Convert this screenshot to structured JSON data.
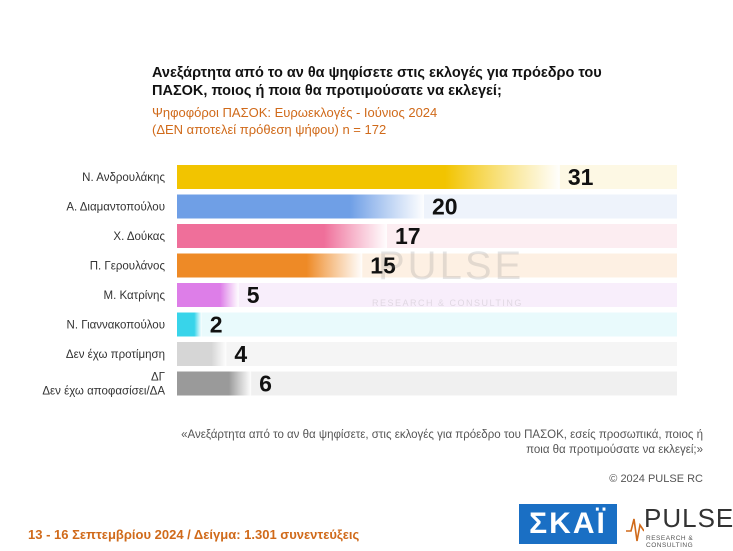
{
  "header": {
    "title": "Ανεξάρτητα από το αν θα ψηφίσετε στις εκλογές για πρόεδρο του ΠΑΣΟΚ, ποιος ή ποια θα προτιμούσατε να εκλεγεί;",
    "subtitle_line1": "Ψηφοφόροι ΠΑΣΟΚ: Ευρωεκλογές - Ιούνιος 2024",
    "subtitle_line2": "(ΔΕΝ αποτελεί πρόθεση ψήφου)   n = 172"
  },
  "chart_data": {
    "type": "bar",
    "orientation": "horizontal",
    "categories": [
      "Ν. Ανδρουλάκης",
      "Α. Διαμαντοπούλου",
      "Χ. Δούκας",
      "Π. Γερουλάνος",
      "Μ. Κατρίνης",
      "Ν. Γιαννακοπούλου",
      "Δεν έχω προτίμηση",
      "ΔΓ/Δεν έχω αποφασίσει/ΔΑ"
    ],
    "values": [
      31,
      20,
      17,
      15,
      5,
      2,
      4,
      6
    ],
    "colors": [
      "#f2c400",
      "#6f9fe6",
      "#ef6f9a",
      "#ee8a26",
      "#dd7ee8",
      "#38d4ea",
      "#d6d6d6",
      "#9a9a9a"
    ],
    "track_colors": [
      "#fdf8e4",
      "#eef3fb",
      "#fcedf1",
      "#fdf0e3",
      "#f8eefb",
      "#e9fafc",
      "#f5f5f5",
      "#f0f0f0"
    ],
    "xlim": [
      0,
      36
    ]
  },
  "footnote": "«Ανεξάρτητα από το αν θα ψηφίσετε, στις εκλογές για πρόεδρο του ΠΑΣΟΚ, εσείς προσωπικά, ποιος ή ποια θα προτιμούσατε να εκλεγεί;»",
  "copyright": "© 2024 PULSE RC",
  "bottom": {
    "fieldwork": "13 - 16 Σεπτεμβρίου 2024  /  Δείγμα:  1.301 συνεντεύξεις"
  },
  "logos": {
    "skai": "ΣΚΑΪ",
    "pulse": "PULSE",
    "pulse_tagline": "RESEARCH & CONSULTING"
  }
}
